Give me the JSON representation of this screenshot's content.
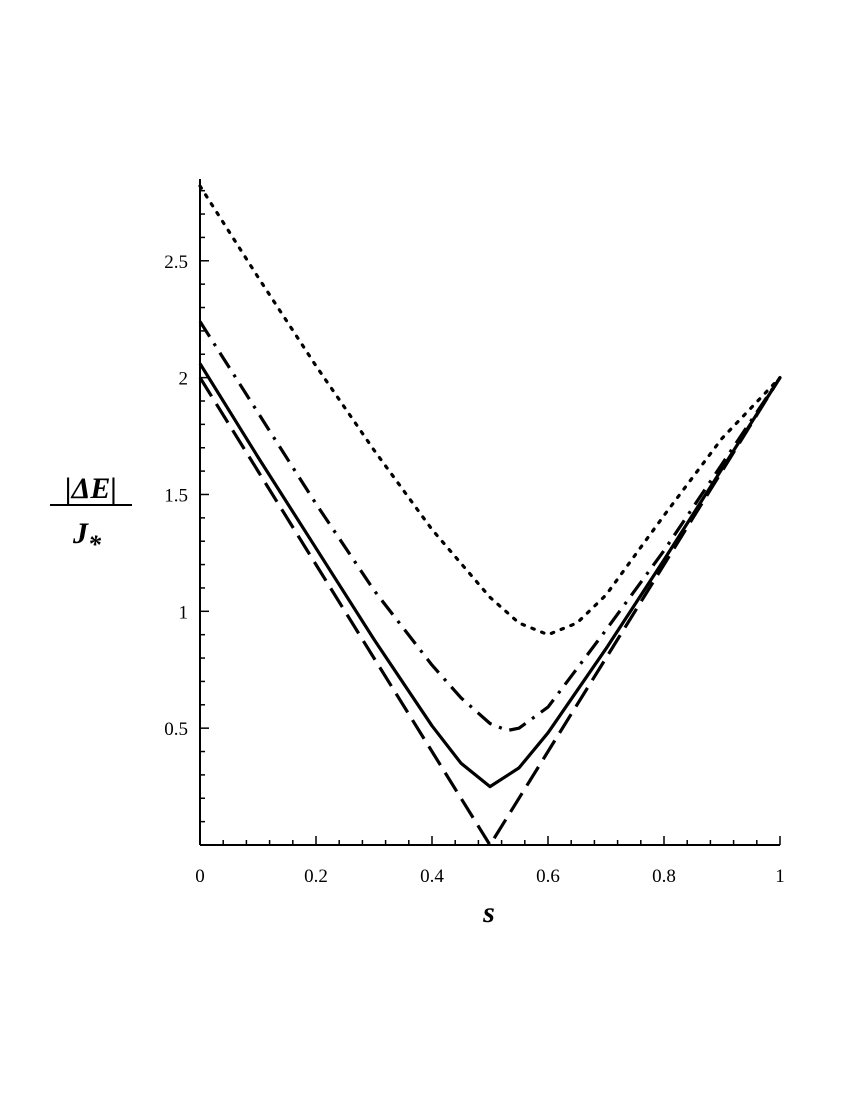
{
  "chart_data": {
    "type": "line",
    "title": "",
    "xlabel": "s",
    "ylabel": {
      "numerator": "|ΔE|",
      "denominator": "J",
      "subscript": "*"
    },
    "xlim": [
      0,
      1
    ],
    "ylim": [
      0,
      2.85
    ],
    "x_ticks": [
      {
        "value": 0,
        "label": "0"
      },
      {
        "value": 0.2,
        "label": "0.2"
      },
      {
        "value": 0.4,
        "label": "0.4"
      },
      {
        "value": 0.6,
        "label": "0.6"
      },
      {
        "value": 0.8,
        "label": "0.8"
      },
      {
        "value": 1,
        "label": "1"
      }
    ],
    "y_ticks": [
      {
        "value": 0.5,
        "label": "0.5"
      },
      {
        "value": 1,
        "label": "1"
      },
      {
        "value": 1.5,
        "label": "1.5"
      },
      {
        "value": 2,
        "label": "2"
      },
      {
        "value": 2.5,
        "label": "2.5"
      }
    ],
    "grid": false,
    "legend": "none",
    "line_color": "#000000",
    "series": [
      {
        "style": "dashed",
        "x": [
          0,
          0.1,
          0.2,
          0.3,
          0.4,
          0.5,
          0.6,
          0.7,
          0.8,
          0.9,
          1
        ],
        "y": [
          2.0,
          1.6,
          1.2,
          0.8,
          0.4,
          0.0,
          0.4,
          0.8,
          1.2,
          1.6,
          2.0
        ]
      },
      {
        "style": "solid",
        "x": [
          0,
          0.1,
          0.2,
          0.3,
          0.4,
          0.45,
          0.5,
          0.55,
          0.6,
          0.7,
          0.8,
          0.9,
          1
        ],
        "y": [
          2.06,
          1.66,
          1.27,
          0.88,
          0.51,
          0.35,
          0.25,
          0.33,
          0.48,
          0.84,
          1.22,
          1.61,
          2.0
        ]
      },
      {
        "style": "dashdot",
        "x": [
          0,
          0.1,
          0.2,
          0.3,
          0.4,
          0.45,
          0.5,
          0.53,
          0.55,
          0.6,
          0.7,
          0.8,
          0.9,
          1
        ],
        "y": [
          2.24,
          1.85,
          1.46,
          1.09,
          0.77,
          0.63,
          0.52,
          0.49,
          0.5,
          0.59,
          0.92,
          1.26,
          1.63,
          2.0
        ]
      },
      {
        "style": "dotted",
        "x": [
          0,
          0.1,
          0.2,
          0.3,
          0.4,
          0.5,
          0.55,
          0.6,
          0.65,
          0.7,
          0.8,
          0.9,
          1
        ],
        "y": [
          2.82,
          2.43,
          2.05,
          1.69,
          1.35,
          1.06,
          0.95,
          0.9,
          0.95,
          1.07,
          1.41,
          1.74,
          2.0
        ]
      }
    ]
  }
}
